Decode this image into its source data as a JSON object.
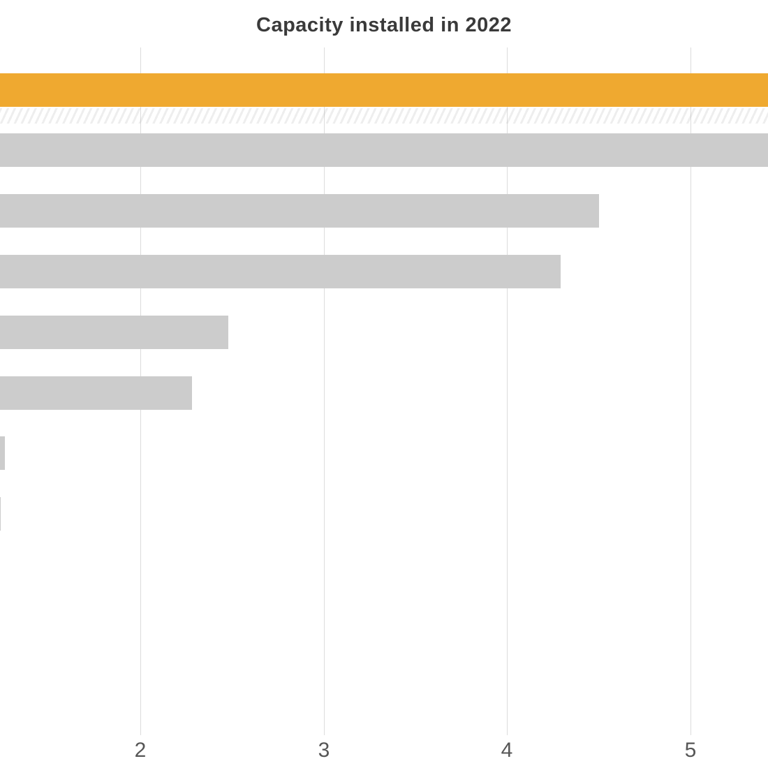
{
  "page": {
    "background_color": "#ffffff"
  },
  "chart_data": {
    "type": "bar",
    "orientation": "horizontal",
    "title": "Capacity installed in 2022",
    "xlabel": "",
    "ylabel": "",
    "x_ticks": [
      2,
      3,
      4,
      5
    ],
    "x_visible_range": [
      1.23,
      5.42
    ],
    "grid": true,
    "legend": false,
    "categories_note": "category labels are cropped off the left edge of the screenshot; bars run off-screen left toward 0",
    "bars": [
      {
        "row": 1,
        "value": 5.6,
        "clipped_right": true,
        "highlight": true
      },
      {
        "row": 2,
        "value": 5.5,
        "clipped_right": true,
        "highlight": false
      },
      {
        "row": 3,
        "value": 4.5,
        "clipped_right": false,
        "highlight": false
      },
      {
        "row": 4,
        "value": 4.29,
        "clipped_right": false,
        "highlight": false
      },
      {
        "row": 5,
        "value": 2.48,
        "clipped_right": false,
        "highlight": false
      },
      {
        "row": 6,
        "value": 2.28,
        "clipped_right": false,
        "highlight": false
      },
      {
        "row": 7,
        "value": 1.26,
        "clipped_right": false,
        "highlight": false
      },
      {
        "row": 8,
        "value": 1.24,
        "clipped_right": false,
        "highlight": false
      }
    ],
    "colors": {
      "highlight_bar": "#efa930",
      "default_bar": "#cccccc",
      "gridline": "#dcdcdc",
      "title_text": "#3a3a3a",
      "tick_text": "#565656"
    },
    "faint_hatch_band_below_first_bar": true
  }
}
